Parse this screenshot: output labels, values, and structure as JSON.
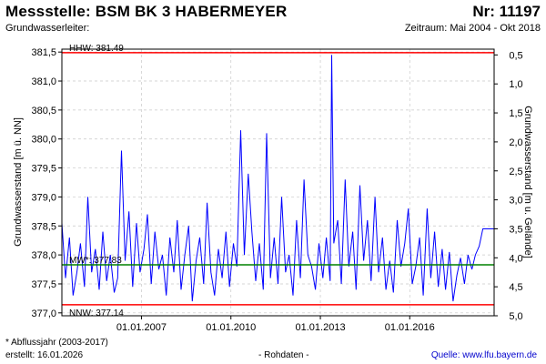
{
  "header": {
    "title": "Messstelle: BSM BK 3 HABERMEYER",
    "station_nr": "Nr: 11197",
    "aquifer": "Grundwasserleiter:",
    "period": "Zeitraum: Mai 2004 - Okt 2018"
  },
  "footer": {
    "footnote": "* Abflussjahr (2003-2017)",
    "created": "erstellt:  16.01.2026",
    "rawdata": "- Rohdaten -",
    "source": "Quelle:  www.lfu.bayern.de"
  },
  "colors": {
    "series": "#0000ff",
    "hhw_nnw": "#ff0000",
    "mw": "#008000",
    "grid": "#c8c8c8"
  },
  "chart_data": {
    "type": "line",
    "ylabel": "Grundwasserstand [m ü. NN]",
    "y2label": "Grundwasserstand [m u. Gelände]",
    "ylim": [
      376.95,
      381.55
    ],
    "yticks": [
      "381,5",
      "381,0",
      "380,5",
      "380,0",
      "379,5",
      "379,0",
      "378,5",
      "378,0",
      "377,5",
      "377,0"
    ],
    "ytick_values": [
      381.5,
      381.0,
      380.5,
      380.0,
      379.5,
      379.0,
      378.5,
      378.0,
      377.5,
      377.0
    ],
    "y2ticks": [
      "0,5",
      "1,0",
      "1,5",
      "2,0",
      "2,5",
      "3,0",
      "3,5",
      "4,0",
      "4,5",
      "5,0"
    ],
    "y2tick_values": [
      0.5,
      1.0,
      1.5,
      2.0,
      2.5,
      3.0,
      3.5,
      4.0,
      4.5,
      5.0
    ],
    "xlim": [
      "2004-05-01",
      "2018-10-31"
    ],
    "xticks": [
      "01.01.2007",
      "01.01.2010",
      "01.01.2013",
      "01.01.2016"
    ],
    "xtick_dates": [
      "2007-01-01",
      "2010-01-01",
      "2013-01-01",
      "2016-01-01"
    ],
    "grid": true,
    "reference_lines": [
      {
        "label": "HHW: 381.49",
        "value": 381.49
      },
      {
        "label": "MW*: 377.83",
        "value": 377.83
      },
      {
        "label": "NNW: 377.14",
        "value": 377.14
      }
    ],
    "series": [
      {
        "x": [
          "2004-05-01",
          "2004-06-15",
          "2004-08-01",
          "2004-09-15",
          "2004-11-01",
          "2004-12-15",
          "2005-02-01",
          "2005-03-15",
          "2005-05-01",
          "2005-06-15",
          "2005-08-01",
          "2005-09-15",
          "2005-11-01",
          "2005-12-15",
          "2006-02-01",
          "2006-03-15",
          "2006-05-01",
          "2006-06-15",
          "2006-08-01",
          "2006-09-15",
          "2006-11-01",
          "2006-12-15",
          "2007-02-01",
          "2007-03-15",
          "2007-05-01",
          "2007-06-15",
          "2007-08-01",
          "2007-09-15",
          "2007-11-01",
          "2007-12-15",
          "2008-02-01",
          "2008-03-15",
          "2008-05-01",
          "2008-06-15",
          "2008-08-01",
          "2008-09-15",
          "2008-11-01",
          "2008-12-15",
          "2009-02-01",
          "2009-03-15",
          "2009-05-01",
          "2009-06-15",
          "2009-08-01",
          "2009-09-15",
          "2009-11-01",
          "2009-12-15",
          "2010-02-01",
          "2010-03-15",
          "2010-05-01",
          "2010-06-15",
          "2010-08-01",
          "2010-09-15",
          "2010-11-01",
          "2010-12-15",
          "2011-02-01",
          "2011-03-15",
          "2011-05-01",
          "2011-06-15",
          "2011-08-01",
          "2011-09-15",
          "2011-11-01",
          "2011-12-15",
          "2012-02-01",
          "2012-03-15",
          "2012-05-01",
          "2012-06-15",
          "2012-08-01",
          "2012-09-15",
          "2012-11-01",
          "2012-12-15",
          "2013-02-01",
          "2013-03-15",
          "2013-05-01",
          "2013-05-20",
          "2013-06-15",
          "2013-08-01",
          "2013-09-15",
          "2013-11-01",
          "2013-12-15",
          "2014-02-01",
          "2014-03-15",
          "2014-05-01",
          "2014-06-15",
          "2014-08-01",
          "2014-09-15",
          "2014-11-01",
          "2014-12-15",
          "2015-02-01",
          "2015-03-15",
          "2015-05-01",
          "2015-06-15",
          "2015-08-01",
          "2015-09-15",
          "2015-11-01",
          "2015-12-15",
          "2016-02-01",
          "2016-03-15",
          "2016-05-01",
          "2016-06-15",
          "2016-08-01",
          "2016-09-15",
          "2016-11-01",
          "2016-12-15",
          "2017-02-01",
          "2017-03-15",
          "2017-05-01",
          "2017-06-15",
          "2017-08-01",
          "2017-09-15",
          "2017-11-01",
          "2017-12-15",
          "2018-02-01",
          "2018-03-15",
          "2018-05-01",
          "2018-06-15",
          "2018-08-01",
          "2018-10-31"
        ],
        "values": [
          378.55,
          377.6,
          378.3,
          377.3,
          377.7,
          378.2,
          377.45,
          379.0,
          377.7,
          378.1,
          377.4,
          378.4,
          377.55,
          378.0,
          377.35,
          377.6,
          379.8,
          377.9,
          378.75,
          377.45,
          378.55,
          377.7,
          378.1,
          378.7,
          377.5,
          378.4,
          377.75,
          378.0,
          377.3,
          378.3,
          377.7,
          378.6,
          377.4,
          378.0,
          378.5,
          377.2,
          377.9,
          378.3,
          377.5,
          378.9,
          377.7,
          377.3,
          378.1,
          377.6,
          378.4,
          377.45,
          378.2,
          377.8,
          380.15,
          378.0,
          379.4,
          378.4,
          377.55,
          378.2,
          377.4,
          380.1,
          377.6,
          378.3,
          377.5,
          379.0,
          377.7,
          378.0,
          377.3,
          378.6,
          377.6,
          379.3,
          378.0,
          377.8,
          377.4,
          378.2,
          377.6,
          378.3,
          377.55,
          381.45,
          378.2,
          378.6,
          377.5,
          379.3,
          377.8,
          378.4,
          377.4,
          379.2,
          377.9,
          378.6,
          377.55,
          379.0,
          377.7,
          378.3,
          377.4,
          377.9,
          377.35,
          378.6,
          377.8,
          378.2,
          378.8,
          377.5,
          377.8,
          378.3,
          377.3,
          378.8,
          377.6,
          378.4,
          377.45,
          378.1,
          377.4,
          378.05,
          377.2,
          377.65,
          377.95,
          377.5,
          378.0,
          377.75,
          378.0,
          378.15,
          378.45,
          378.45,
          378.45
        ]
      }
    ]
  }
}
